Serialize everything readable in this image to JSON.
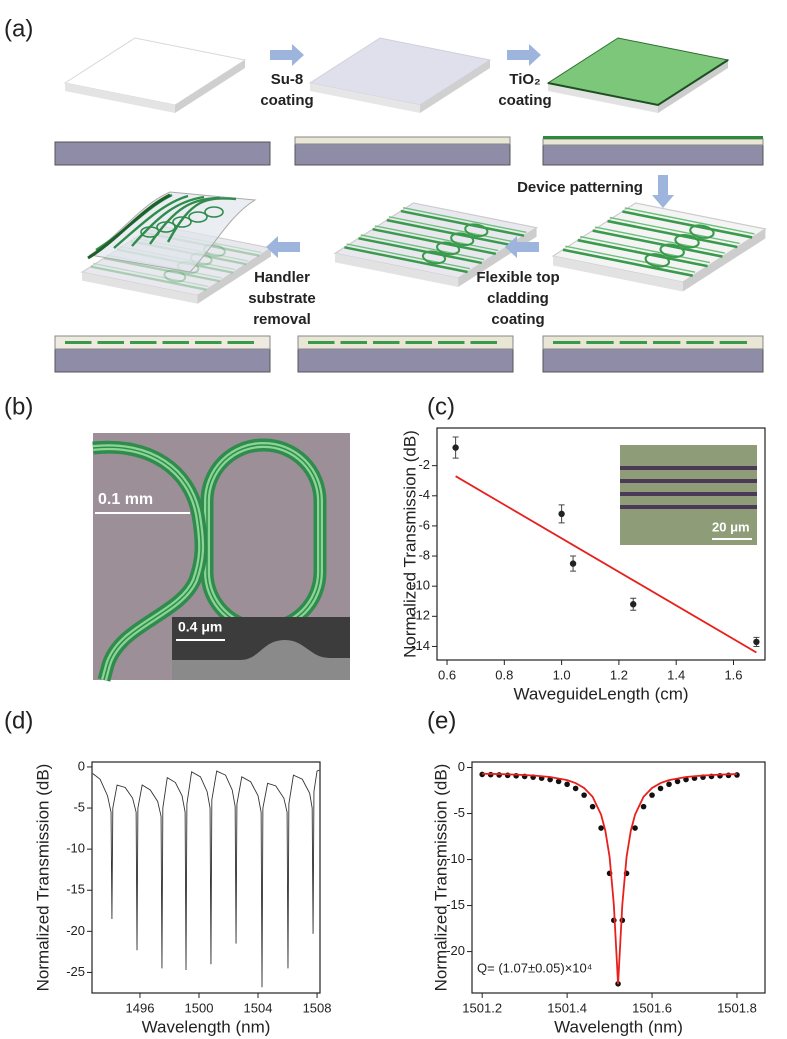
{
  "schematic": {
    "label": "(a)",
    "steps": [
      [
        "Su-8",
        "coating"
      ],
      [
        "TiO₂",
        "coating"
      ],
      [
        "Device patterning"
      ],
      [
        "Flexible top",
        "cladding",
        "coating"
      ],
      [
        "Handler",
        "substrate",
        "removal"
      ]
    ]
  },
  "micrograph": {
    "label": "(b)",
    "scale_bar": "0.1 mm",
    "inset_scale_bar": "0.4 μm"
  },
  "chart_data": [
    {
      "type": "scatter",
      "label": "(c)",
      "xlabel": "WaveguideLength (cm)",
      "ylabel": "Normalized Transmission (dB)",
      "inset_scale_bar": "20 μm",
      "xlim": [
        0.565,
        1.71
      ],
      "ylim": [
        -14.9,
        0.5
      ],
      "xticks": [
        0.6,
        0.8,
        {
          "value": 1,
          "label": "1.0"
        },
        1.2,
        1.4,
        1.6
      ],
      "yticks": [
        -2,
        -4,
        -6,
        -8,
        -10,
        -12,
        -14
      ],
      "series": [
        {
          "style": "points",
          "color": "#222222",
          "x": [
            0.63,
            1.0,
            1.04,
            1.25,
            1.68
          ],
          "values": [
            -0.8,
            -5.2,
            -8.5,
            -11.2,
            -13.7
          ],
          "errors": [
            0.7,
            0.6,
            0.5,
            0.4,
            0.3
          ]
        },
        {
          "style": "line",
          "color": "#e8201c",
          "x": [
            0.63,
            1.68
          ],
          "values": [
            -2.7,
            -14.4
          ]
        }
      ]
    },
    {
      "type": "line",
      "label": "(d)",
      "xlabel": "Wavelength (nm)",
      "ylabel": "Normalized Transmission (dB)",
      "xlim": [
        1492.75,
        1508.2
      ],
      "ylim": [
        -27.5,
        0.6
      ],
      "xticks": [
        1496,
        1500,
        1504,
        1508
      ],
      "yticks": [
        0,
        -5,
        -10,
        -15,
        -20,
        -25
      ],
      "series": [
        {
          "style": "line",
          "color": "#333333",
          "x": [
            1492.8,
            1493.3,
            1493.8,
            1494.04,
            1494.1,
            1494.16,
            1494.45,
            1495.0,
            1495.5,
            1495.74,
            1495.8,
            1495.86,
            1496.15,
            1496.7,
            1497.2,
            1497.43,
            1497.49,
            1497.55,
            1497.85,
            1498.4,
            1498.85,
            1499.06,
            1499.12,
            1499.18,
            1499.5,
            1500.1,
            1500.55,
            1500.75,
            1500.81,
            1500.87,
            1501.2,
            1501.8,
            1502.25,
            1502.45,
            1502.51,
            1502.57,
            1502.9,
            1503.5,
            1504.0,
            1504.21,
            1504.27,
            1504.33,
            1504.65,
            1505.2,
            1505.75,
            1505.97,
            1506.03,
            1506.09,
            1506.4,
            1507.0,
            1507.5,
            1507.67,
            1507.73,
            1507.79,
            1508.0,
            1508.15
          ],
          "values": [
            -0.8,
            -1.5,
            -3.5,
            -5.5,
            -18.5,
            -5,
            -2.2,
            -2.5,
            -3.8,
            -5.5,
            -22.3,
            -5,
            -2.2,
            -2.8,
            -4.2,
            -6,
            -24.5,
            -5,
            -1.3,
            -1.9,
            -3.5,
            -5.5,
            -24.7,
            -4.5,
            -0.6,
            -1.2,
            -3,
            -5,
            -24.0,
            -4,
            -0.5,
            -1,
            -2.8,
            -4.8,
            -21.5,
            -4.5,
            -1.2,
            -1.8,
            -3.5,
            -5.5,
            -26.8,
            -5,
            -2,
            -2.3,
            -3.8,
            -5.5,
            -24.5,
            -4.5,
            -1,
            -1.5,
            -3.2,
            -5,
            -20.3,
            -3,
            -0.5,
            -0.4
          ]
        }
      ]
    },
    {
      "type": "scatter",
      "label": "(e)",
      "xlabel": "Wavelength (nm)",
      "ylabel": "Normalized Transmission (dB)",
      "annotation": "Q= (1.07±0.05)×10⁴",
      "xlim": [
        1501.176,
        1501.866
      ],
      "ylim": [
        -24.5,
        0.6
      ],
      "xticks": [
        1501.2,
        1501.4,
        1501.6,
        1501.8
      ],
      "yticks": [
        0,
        -5,
        -10,
        -15,
        -20
      ],
      "series": [
        {
          "style": "points",
          "color": "#111111",
          "x": [
            1501.2,
            1501.22,
            1501.24,
            1501.26,
            1501.28,
            1501.3,
            1501.32,
            1501.34,
            1501.36,
            1501.38,
            1501.4,
            1501.42,
            1501.44,
            1501.46,
            1501.48,
            1501.5,
            1501.51,
            1501.52,
            1501.53,
            1501.54,
            1501.56,
            1501.58,
            1501.6,
            1501.62,
            1501.64,
            1501.66,
            1501.68,
            1501.7,
            1501.72,
            1501.74,
            1501.76,
            1501.78,
            1501.8
          ],
          "values": [
            -0.75,
            -0.78,
            -0.81,
            -0.85,
            -0.9,
            -0.97,
            -1.05,
            -1.16,
            -1.31,
            -1.51,
            -1.82,
            -2.27,
            -3.0,
            -4.25,
            -6.58,
            -11.5,
            -16.6,
            -23.5,
            -16.6,
            -11.5,
            -6.58,
            -4.25,
            -3.0,
            -2.27,
            -1.82,
            -1.51,
            -1.31,
            -1.16,
            -1.05,
            -0.97,
            -0.9,
            -0.85,
            -0.81
          ]
        },
        {
          "style": "line",
          "color": "#e8201c",
          "x": [
            1501.2,
            1501.24,
            1501.28,
            1501.32,
            1501.36,
            1501.4,
            1501.42,
            1501.44,
            1501.46,
            1501.48,
            1501.49,
            1501.5,
            1501.51,
            1501.52,
            1501.53,
            1501.54,
            1501.55,
            1501.56,
            1501.58,
            1501.6,
            1501.62,
            1501.64,
            1501.68,
            1501.72,
            1501.76,
            1501.8
          ],
          "values": [
            -0.68,
            -0.71,
            -0.77,
            -0.87,
            -1.03,
            -1.37,
            -1.69,
            -2.22,
            -3.18,
            -5.12,
            -6.87,
            -9.71,
            -14.89,
            -23.55,
            -14.89,
            -9.71,
            -6.87,
            -5.12,
            -3.18,
            -2.22,
            -1.69,
            -1.37,
            -1.03,
            -0.87,
            -0.77,
            -0.71
          ]
        }
      ]
    }
  ]
}
